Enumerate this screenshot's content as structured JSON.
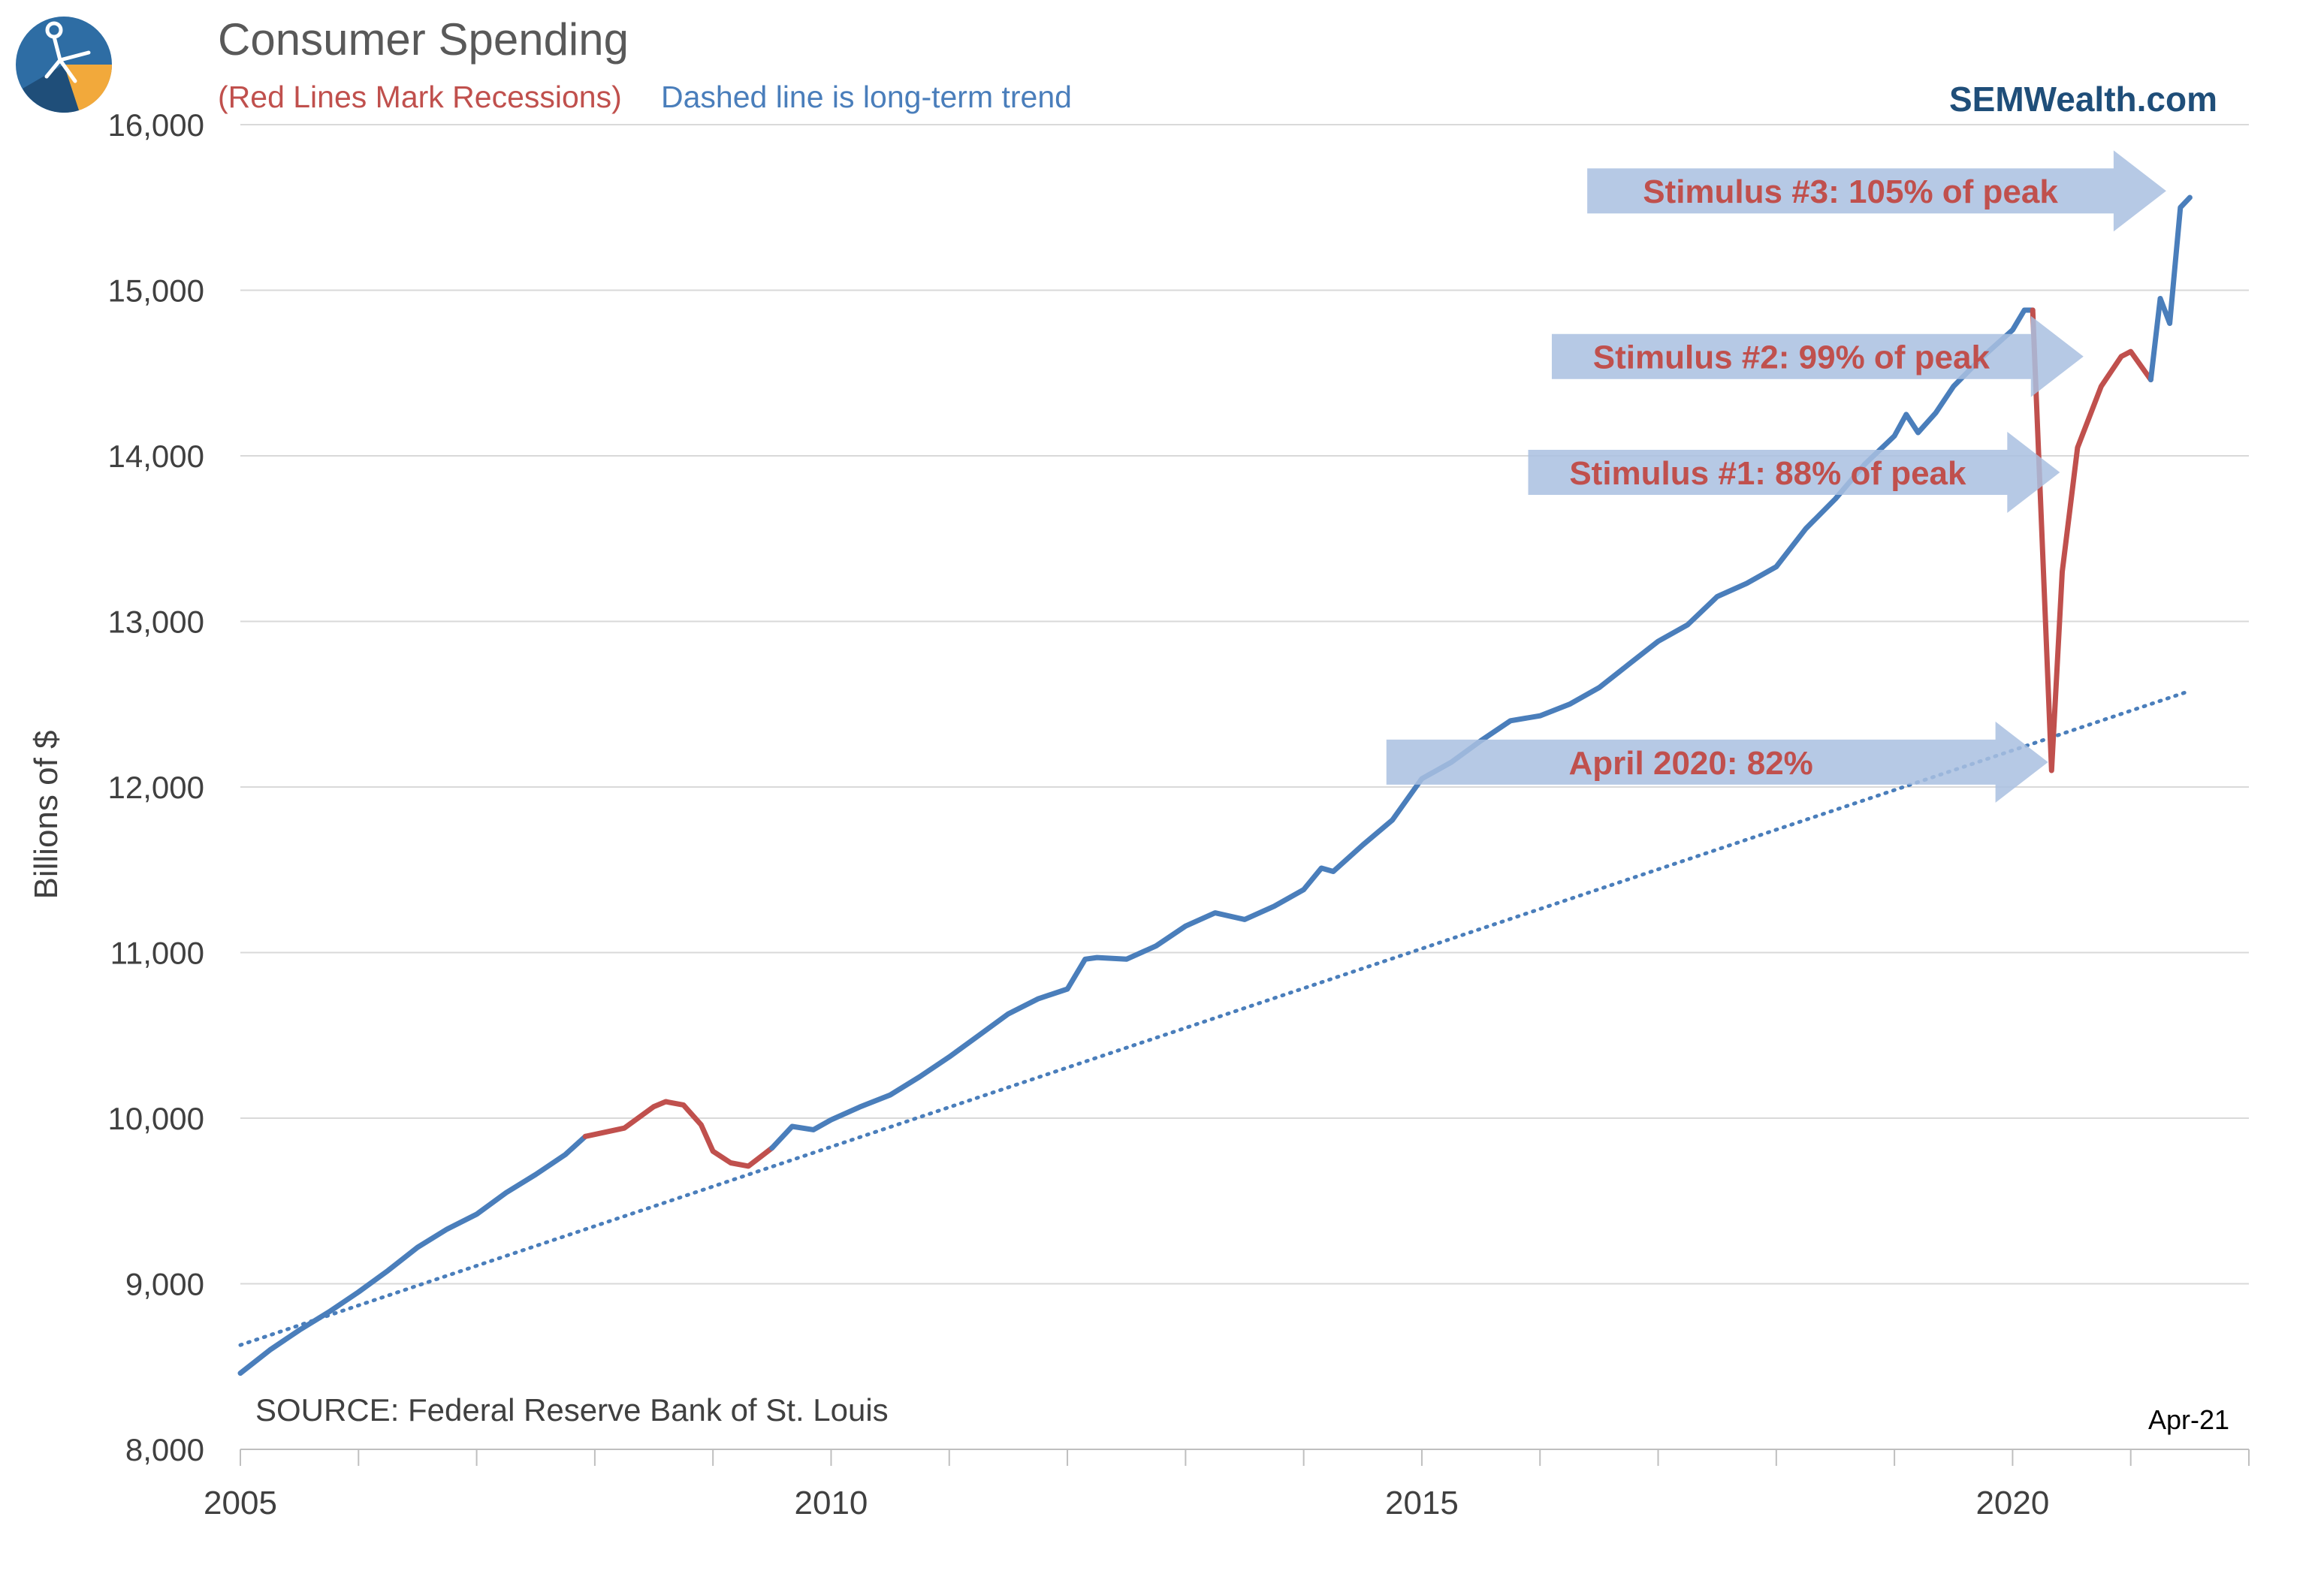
{
  "header": {
    "title": "Consumer Spending",
    "subtitle_red": "(Red Lines Mark Recessions)",
    "subtitle_blue": "Dashed line is long-term trend",
    "brand": "SEMWealth.com"
  },
  "footer": {
    "source": "SOURCE:  Federal Reserve Bank of St. Louis",
    "date": "Apr-21"
  },
  "colors": {
    "blue": "#4A7EBB",
    "red": "#C0504D",
    "arrow": "#A9C0E0",
    "grid": "#D9D9D9",
    "axis_text": "#404040",
    "brand": "#1F4E79"
  },
  "chart_data": {
    "type": "line",
    "title": "Consumer Spending",
    "ylabel": "Billions of $",
    "xlabel": "",
    "ylim": [
      8000,
      16000
    ],
    "xlim": [
      2005.0,
      2022.0
    ],
    "y_ticks": [
      8000,
      9000,
      10000,
      11000,
      12000,
      13000,
      14000,
      15000,
      16000
    ],
    "y_tick_labels": [
      "8,000",
      "9,000",
      "10,000",
      "11,000",
      "12,000",
      "13,000",
      "14,000",
      "15,000",
      "16,000"
    ],
    "x_ticks": [
      2005,
      2010,
      2015,
      2020
    ],
    "x_tick_labels": [
      "2005",
      "2010",
      "2015",
      "2020"
    ],
    "series": [
      {
        "name": "Consumer Spending",
        "color": "#4A7EBB",
        "recession_color": "#C0504D",
        "points": [
          [
            2005.0,
            8460
          ],
          [
            2005.25,
            8600
          ],
          [
            2005.5,
            8720
          ],
          [
            2005.75,
            8830
          ],
          [
            2006.0,
            8950
          ],
          [
            2006.25,
            9080
          ],
          [
            2006.5,
            9220
          ],
          [
            2006.75,
            9330
          ],
          [
            2007.0,
            9420
          ],
          [
            2007.25,
            9550
          ],
          [
            2007.5,
            9660
          ],
          [
            2007.75,
            9780
          ],
          [
            2007.92,
            9890
          ],
          [
            2008.25,
            9940
          ],
          [
            2008.5,
            10070
          ],
          [
            2008.6,
            10100
          ],
          [
            2008.75,
            10080
          ],
          [
            2008.9,
            9960
          ],
          [
            2009.0,
            9800
          ],
          [
            2009.15,
            9730
          ],
          [
            2009.3,
            9710
          ],
          [
            2009.5,
            9820
          ],
          [
            2009.67,
            9950
          ],
          [
            2009.85,
            9930
          ],
          [
            2010.0,
            9990
          ],
          [
            2010.25,
            10070
          ],
          [
            2010.5,
            10140
          ],
          [
            2010.75,
            10250
          ],
          [
            2011.0,
            10370
          ],
          [
            2011.25,
            10500
          ],
          [
            2011.5,
            10630
          ],
          [
            2011.75,
            10720
          ],
          [
            2012.0,
            10780
          ],
          [
            2012.15,
            10960
          ],
          [
            2012.25,
            10970
          ],
          [
            2012.5,
            10960
          ],
          [
            2012.75,
            11040
          ],
          [
            2013.0,
            11160
          ],
          [
            2013.25,
            11240
          ],
          [
            2013.5,
            11200
          ],
          [
            2013.75,
            11280
          ],
          [
            2014.0,
            11380
          ],
          [
            2014.15,
            11510
          ],
          [
            2014.25,
            11490
          ],
          [
            2014.5,
            11650
          ],
          [
            2014.75,
            11800
          ],
          [
            2015.0,
            12050
          ],
          [
            2015.25,
            12150
          ],
          [
            2015.5,
            12280
          ],
          [
            2015.75,
            12400
          ],
          [
            2016.0,
            12430
          ],
          [
            2016.25,
            12500
          ],
          [
            2016.5,
            12600
          ],
          [
            2016.75,
            12740
          ],
          [
            2017.0,
            12880
          ],
          [
            2017.25,
            12980
          ],
          [
            2017.5,
            13150
          ],
          [
            2017.75,
            13230
          ],
          [
            2018.0,
            13330
          ],
          [
            2018.25,
            13560
          ],
          [
            2018.5,
            13740
          ],
          [
            2018.75,
            13950
          ],
          [
            2019.0,
            14120
          ],
          [
            2019.1,
            14250
          ],
          [
            2019.2,
            14140
          ],
          [
            2019.35,
            14260
          ],
          [
            2019.5,
            14420
          ],
          [
            2019.75,
            14600
          ],
          [
            2020.0,
            14760
          ],
          [
            2020.1,
            14880
          ],
          [
            2020.17,
            14880
          ],
          [
            2020.25,
            13500
          ],
          [
            2020.33,
            12100
          ],
          [
            2020.42,
            13300
          ],
          [
            2020.55,
            14050
          ],
          [
            2020.75,
            14420
          ],
          [
            2020.92,
            14600
          ],
          [
            2021.0,
            14630
          ],
          [
            2021.17,
            14460
          ],
          [
            2021.25,
            14950
          ],
          [
            2021.33,
            14800
          ],
          [
            2021.42,
            15500
          ],
          [
            2021.5,
            15560
          ]
        ],
        "recessions": [
          [
            2007.92,
            2009.5
          ],
          [
            2020.17,
            2021.17
          ]
        ]
      },
      {
        "name": "Long-term trend",
        "style": "dotted",
        "color": "#4A7EBB",
        "points": [
          [
            2005.0,
            8630
          ],
          [
            2021.5,
            12580
          ]
        ]
      }
    ],
    "annotations": [
      {
        "text": "Stimulus #3: 105% of peak",
        "x_start": 2016.4,
        "x_end": 2021.3,
        "y": 15600
      },
      {
        "text": "Stimulus #2: 99% of peak",
        "x_start": 2016.1,
        "x_end": 2020.6,
        "y": 14600
      },
      {
        "text": "Stimulus #1: 88% of peak",
        "x_start": 2015.9,
        "x_end": 2020.4,
        "y": 13900
      },
      {
        "text": "April 2020: 82%",
        "x_start": 2014.7,
        "x_end": 2020.3,
        "y": 12150
      }
    ],
    "legend": "none"
  }
}
